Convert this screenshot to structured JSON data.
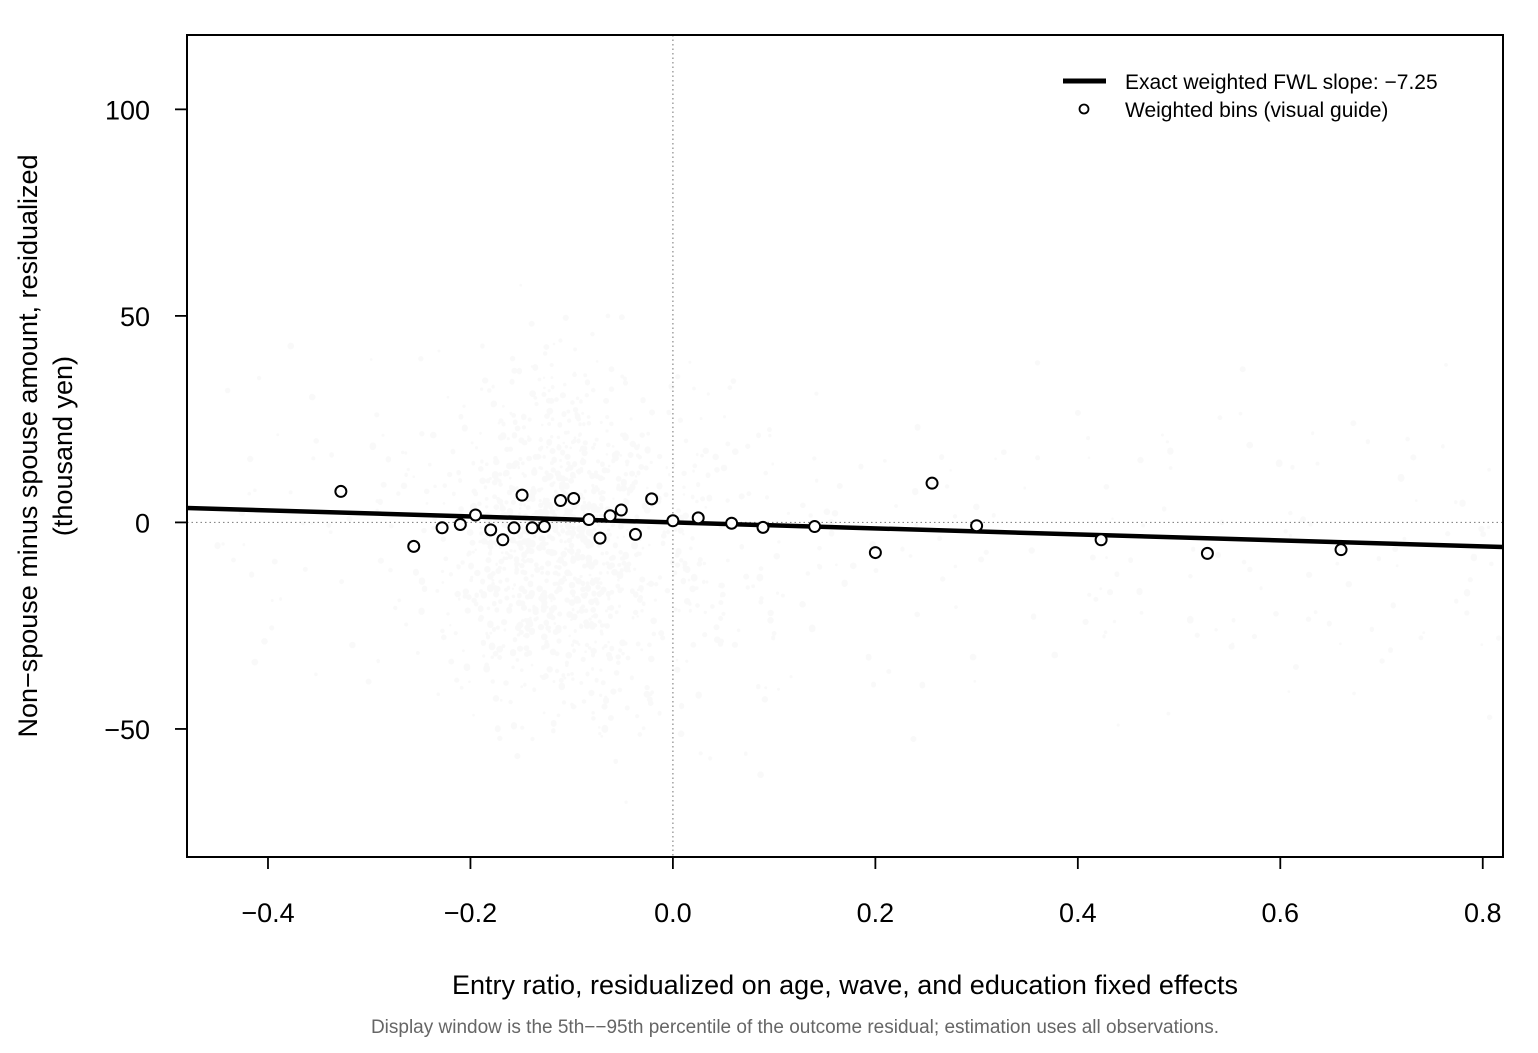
{
  "chart_data": {
    "type": "scatter",
    "xlabel": "Entry ratio, residualized on age, wave, and education fixed effects",
    "ylabel_lines": [
      "Non−spouse minus spouse amount, residualized",
      "(thousand yen)"
    ],
    "caption": "Display window is the 5th−−95th percentile of the outcome residual; estimation uses all observations.",
    "xlim": [
      -0.48,
      0.82
    ],
    "ylim": [
      -81,
      118
    ],
    "x_ticks": [
      -0.4,
      -0.2,
      0.0,
      0.2,
      0.4,
      0.6,
      0.8
    ],
    "x_tick_labels": [
      "−0.4",
      "−0.2",
      "0.0",
      "0.2",
      "0.4",
      "0.6",
      "0.8"
    ],
    "y_ticks": [
      -50,
      0,
      50,
      100
    ],
    "y_tick_labels": [
      "−50",
      "0",
      "50",
      "100"
    ],
    "reference_lines": {
      "x": 0,
      "y": 0,
      "style": "dotted"
    },
    "fit_line": {
      "name": "Exact weighted FWL slope: −7.25",
      "slope": -7.25,
      "intercept": 0.0,
      "color": "#000000"
    },
    "bins": {
      "name": "Weighted bins (visual guide)",
      "x": [
        -0.328,
        -0.256,
        -0.228,
        -0.21,
        -0.195,
        -0.18,
        -0.168,
        -0.157,
        -0.149,
        -0.139,
        -0.127,
        -0.111,
        -0.098,
        -0.083,
        -0.072,
        -0.062,
        -0.051,
        -0.037,
        -0.021,
        0.0,
        0.025,
        0.058,
        0.089,
        0.14,
        0.2,
        0.256,
        0.3,
        0.423,
        0.528,
        0.66
      ],
      "y": [
        7.5,
        -5.8,
        -1.3,
        -0.5,
        1.8,
        -1.8,
        -4.2,
        -1.3,
        6.6,
        -1.3,
        -1.0,
        5.3,
        5.8,
        0.7,
        -3.8,
        1.6,
        3.0,
        -2.9,
        5.7,
        0.4,
        1.1,
        -0.2,
        -1.2,
        -1.0,
        -7.3,
        9.5,
        -0.8,
        -4.2,
        -7.5,
        -6.6
      ]
    },
    "legend": {
      "placement": "top-right",
      "entries": [
        "Exact weighted FWL slope: −7.25",
        "Weighted bins (visual guide)"
      ]
    },
    "background_points": {
      "description_role": "faint raw observations",
      "color": "#9a9a9a"
    }
  }
}
